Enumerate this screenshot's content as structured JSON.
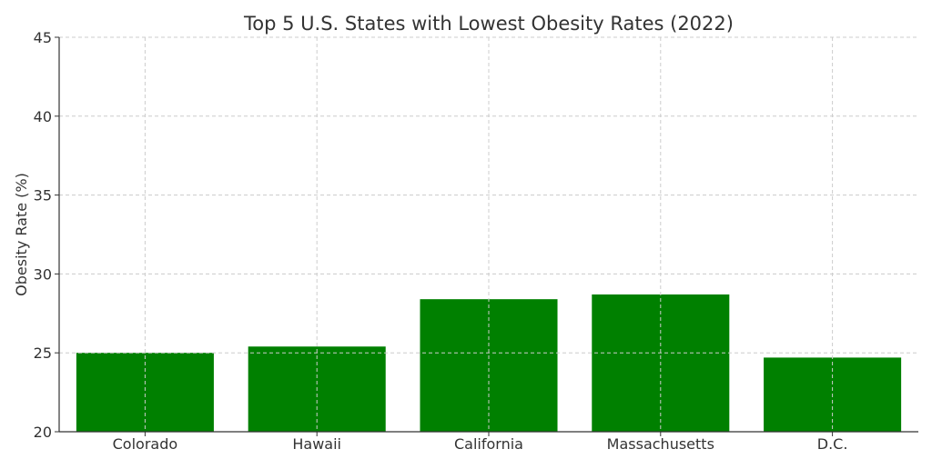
{
  "chart_data": {
    "type": "bar",
    "title": "Top 5 U.S. States with Lowest Obesity Rates (2022)",
    "xlabel": "",
    "ylabel": "Obesity Rate (%)",
    "categories": [
      "Colorado",
      "Hawaii",
      "California",
      "Massachusetts",
      "D.C."
    ],
    "values": [
      25.0,
      25.4,
      28.4,
      28.7,
      24.7
    ],
    "ylim": [
      20,
      45
    ],
    "yticks": [
      20,
      25,
      30,
      35,
      40,
      45
    ],
    "ytick_labels": [
      "20",
      "25",
      "30",
      "35",
      "40",
      "45"
    ],
    "grid": true,
    "bar_color": "#008000"
  }
}
